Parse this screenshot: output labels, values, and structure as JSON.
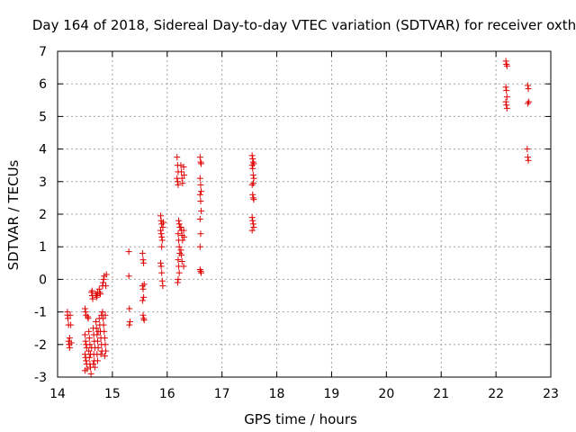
{
  "chart_data": {
    "type": "scatter",
    "title": "Day 164 of 2018, Sidereal Day-to-day VTEC variation (SDTVAR) for receiver oxth",
    "xlabel": "GPS time / hours",
    "ylabel": "SDTVAR / TECUs",
    "xlim": [
      14,
      23
    ],
    "ylim": [
      -3,
      7
    ],
    "xticks": [
      "14",
      "15",
      "16",
      "17",
      "18",
      "19",
      "20",
      "21",
      "22",
      "23"
    ],
    "yticks": [
      "-3",
      "-2",
      "-1",
      "0",
      "1",
      "2",
      "3",
      "4",
      "5",
      "6",
      "7"
    ],
    "grid": true,
    "marker": "+",
    "color": "#e00000",
    "series": [
      {
        "name": "oxth",
        "points": [
          [
            14.18,
            -1.0
          ],
          [
            14.18,
            -1.1
          ],
          [
            14.19,
            -1.2
          ],
          [
            14.2,
            -1.4
          ],
          [
            14.2,
            -1.9
          ],
          [
            14.21,
            -2.0
          ],
          [
            14.22,
            -2.1
          ],
          [
            14.22,
            -1.8
          ],
          [
            14.23,
            -1.1
          ],
          [
            14.24,
            -1.4
          ],
          [
            14.25,
            -1.95
          ],
          [
            14.5,
            -0.9
          ],
          [
            14.51,
            -1.0
          ],
          [
            14.52,
            -1.1
          ],
          [
            14.5,
            -1.7
          ],
          [
            14.51,
            -1.9
          ],
          [
            14.52,
            -2.0
          ],
          [
            14.53,
            -2.1
          ],
          [
            14.5,
            -2.3
          ],
          [
            14.51,
            -2.4
          ],
          [
            14.52,
            -2.5
          ],
          [
            14.53,
            -2.6
          ],
          [
            14.5,
            -2.8
          ],
          [
            14.54,
            -2.75
          ],
          [
            14.55,
            -1.15
          ],
          [
            14.56,
            -1.2
          ],
          [
            14.57,
            -1.6
          ],
          [
            14.58,
            -1.8
          ],
          [
            14.59,
            -2.0
          ],
          [
            14.57,
            -2.2
          ],
          [
            14.58,
            -2.4
          ],
          [
            14.59,
            -2.6
          ],
          [
            14.6,
            -2.7
          ],
          [
            14.61,
            -2.9
          ],
          [
            14.6,
            -2.3
          ],
          [
            14.62,
            -2.1
          ],
          [
            14.62,
            -0.4
          ],
          [
            14.63,
            -0.5
          ],
          [
            14.64,
            -0.6
          ],
          [
            14.63,
            -0.35
          ],
          [
            14.65,
            -1.5
          ],
          [
            14.66,
            -1.7
          ],
          [
            14.67,
            -1.9
          ],
          [
            14.68,
            -2.1
          ],
          [
            14.66,
            -2.3
          ],
          [
            14.67,
            -2.5
          ],
          [
            14.68,
            -2.7
          ],
          [
            14.65,
            -2.6
          ],
          [
            14.7,
            -0.45
          ],
          [
            14.71,
            -0.55
          ],
          [
            14.72,
            -0.5
          ],
          [
            14.73,
            -0.4
          ],
          [
            14.7,
            -1.3
          ],
          [
            14.71,
            -1.5
          ],
          [
            14.72,
            -1.7
          ],
          [
            14.73,
            -1.9
          ],
          [
            14.74,
            -2.1
          ],
          [
            14.72,
            -2.3
          ],
          [
            14.73,
            -2.5
          ],
          [
            14.74,
            -1.6
          ],
          [
            14.76,
            -0.3
          ],
          [
            14.77,
            -0.4
          ],
          [
            14.78,
            -0.45
          ],
          [
            14.76,
            -1.2
          ],
          [
            14.77,
            -1.4
          ],
          [
            14.78,
            -1.6
          ],
          [
            14.79,
            -1.8
          ],
          [
            14.8,
            -2.0
          ],
          [
            14.81,
            -2.2
          ],
          [
            14.79,
            -2.3
          ],
          [
            14.8,
            -1.1
          ],
          [
            14.82,
            -0.2
          ],
          [
            14.83,
            -0.1
          ],
          [
            14.84,
            0.0
          ],
          [
            14.85,
            0.1
          ],
          [
            14.82,
            -1.0
          ],
          [
            14.83,
            -1.2
          ],
          [
            14.84,
            -1.4
          ],
          [
            14.85,
            -1.6
          ],
          [
            14.86,
            -1.8
          ],
          [
            14.87,
            -2.0
          ],
          [
            14.88,
            -2.2
          ],
          [
            14.86,
            -2.35
          ],
          [
            14.87,
            -1.1
          ],
          [
            14.88,
            -0.2
          ],
          [
            14.89,
            0.15
          ],
          [
            15.3,
            0.85
          ],
          [
            15.3,
            0.1
          ],
          [
            15.31,
            -0.9
          ],
          [
            15.32,
            -1.3
          ],
          [
            15.31,
            -1.4
          ],
          [
            15.55,
            0.8
          ],
          [
            15.56,
            0.6
          ],
          [
            15.57,
            0.5
          ],
          [
            15.55,
            -0.2
          ],
          [
            15.56,
            -0.3
          ],
          [
            15.57,
            -0.55
          ],
          [
            15.55,
            -0.65
          ],
          [
            15.56,
            -1.1
          ],
          [
            15.57,
            -1.2
          ],
          [
            15.58,
            -1.25
          ],
          [
            15.58,
            -0.15
          ],
          [
            15.88,
            1.95
          ],
          [
            15.89,
            1.8
          ],
          [
            15.9,
            1.7
          ],
          [
            15.88,
            1.5
          ],
          [
            15.89,
            1.4
          ],
          [
            15.9,
            1.3
          ],
          [
            15.91,
            1.2
          ],
          [
            15.92,
            1.6
          ],
          [
            15.93,
            1.75
          ],
          [
            15.88,
            0.5
          ],
          [
            15.89,
            0.4
          ],
          [
            15.9,
            0.2
          ],
          [
            15.91,
            -0.05
          ],
          [
            15.92,
            -0.2
          ],
          [
            15.9,
            1.0
          ],
          [
            16.18,
            3.75
          ],
          [
            16.19,
            3.5
          ],
          [
            16.2,
            3.3
          ],
          [
            16.18,
            3.1
          ],
          [
            16.19,
            3.0
          ],
          [
            16.2,
            2.9
          ],
          [
            16.21,
            1.8
          ],
          [
            16.22,
            1.7
          ],
          [
            16.23,
            1.6
          ],
          [
            16.2,
            1.4
          ],
          [
            16.21,
            1.2
          ],
          [
            16.22,
            1.0
          ],
          [
            16.23,
            0.8
          ],
          [
            16.2,
            0.6
          ],
          [
            16.21,
            0.4
          ],
          [
            16.22,
            0.2
          ],
          [
            16.2,
            0.0
          ],
          [
            16.19,
            -0.1
          ],
          [
            16.25,
            3.5
          ],
          [
            16.26,
            3.3
          ],
          [
            16.27,
            3.1
          ],
          [
            16.28,
            2.95
          ],
          [
            16.25,
            1.6
          ],
          [
            16.26,
            1.5
          ],
          [
            16.27,
            1.35
          ],
          [
            16.28,
            1.2
          ],
          [
            16.25,
            0.9
          ],
          [
            16.26,
            0.75
          ],
          [
            16.27,
            0.55
          ],
          [
            16.3,
            3.45
          ],
          [
            16.31,
            3.2
          ],
          [
            16.3,
            1.5
          ],
          [
            16.31,
            1.3
          ],
          [
            16.3,
            0.4
          ],
          [
            16.6,
            3.75
          ],
          [
            16.61,
            3.6
          ],
          [
            16.62,
            3.55
          ],
          [
            16.6,
            3.1
          ],
          [
            16.61,
            2.9
          ],
          [
            16.62,
            2.7
          ],
          [
            16.6,
            2.6
          ],
          [
            16.61,
            2.4
          ],
          [
            16.62,
            2.1
          ],
          [
            16.6,
            1.85
          ],
          [
            16.61,
            1.4
          ],
          [
            16.6,
            1.0
          ],
          [
            16.6,
            0.3
          ],
          [
            16.61,
            0.25
          ],
          [
            16.62,
            0.2
          ],
          [
            17.55,
            3.8
          ],
          [
            17.56,
            3.7
          ],
          [
            17.57,
            3.6
          ],
          [
            17.55,
            3.5
          ],
          [
            17.56,
            3.4
          ],
          [
            17.57,
            3.2
          ],
          [
            17.58,
            3.1
          ],
          [
            17.55,
            2.9
          ],
          [
            17.56,
            2.6
          ],
          [
            17.57,
            2.5
          ],
          [
            17.58,
            2.45
          ],
          [
            17.55,
            1.9
          ],
          [
            17.56,
            1.8
          ],
          [
            17.57,
            1.7
          ],
          [
            17.58,
            1.6
          ],
          [
            17.55,
            1.5
          ],
          [
            17.58,
            3.55
          ],
          [
            17.57,
            2.95
          ],
          [
            22.18,
            6.7
          ],
          [
            22.19,
            6.6
          ],
          [
            22.2,
            6.55
          ],
          [
            22.18,
            5.9
          ],
          [
            22.19,
            5.8
          ],
          [
            22.2,
            5.6
          ],
          [
            22.18,
            5.45
          ],
          [
            22.19,
            5.35
          ],
          [
            22.2,
            5.25
          ],
          [
            22.58,
            5.95
          ],
          [
            22.59,
            5.85
          ],
          [
            22.6,
            5.45
          ],
          [
            22.58,
            5.4
          ],
          [
            22.57,
            4.0
          ],
          [
            22.58,
            3.75
          ],
          [
            22.59,
            3.65
          ]
        ]
      }
    ]
  }
}
